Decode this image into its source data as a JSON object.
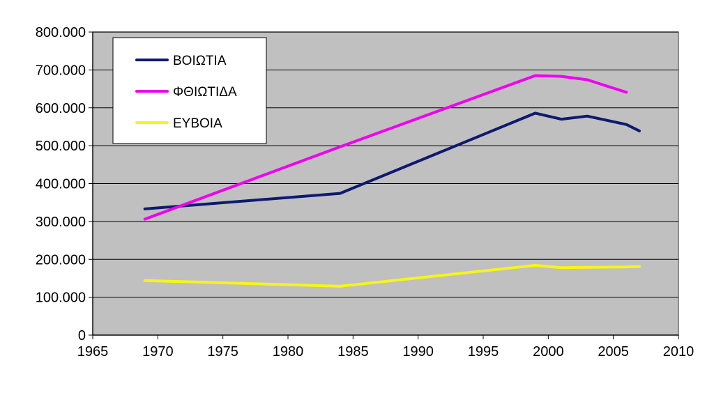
{
  "chart_data": {
    "type": "line",
    "title": "",
    "xlabel": "",
    "ylabel": "",
    "xlim": [
      1965,
      2010
    ],
    "ylim": [
      0,
      800000
    ],
    "x_ticks": [
      1965,
      1970,
      1975,
      1980,
      1985,
      1990,
      1995,
      2000,
      2005,
      2010
    ],
    "x_tick_labels": [
      "1965",
      "1970",
      "1975",
      "1980",
      "1985",
      "1990",
      "1995",
      "2000",
      "2005",
      "2010"
    ],
    "y_ticks": [
      0,
      100000,
      200000,
      300000,
      400000,
      500000,
      600000,
      700000,
      800000
    ],
    "y_tick_labels": [
      "0",
      "100.000",
      "200.000",
      "300.000",
      "400.000",
      "500.000",
      "600.000",
      "700.000",
      "800.000"
    ],
    "grid": "horizontal",
    "legend_position": "top-left",
    "plot_background": "#c0c0c0",
    "series": [
      {
        "name": "ΒΟΙΩΤΙΑ",
        "color": "#0d1a6e",
        "x": [
          1969,
          1984,
          1999,
          2001,
          2003,
          2006,
          2007
        ],
        "y": [
          333000,
          374000,
          586000,
          570000,
          578000,
          556000,
          539000
        ]
      },
      {
        "name": "ΦΘΙΩΤΙΔΑ",
        "color": "#ee00ee",
        "x": [
          1969,
          1984,
          1999,
          2001,
          2003,
          2006
        ],
        "y": [
          306000,
          497000,
          685000,
          683000,
          674000,
          641000
        ]
      },
      {
        "name": "ΕΥΒΟΙΑ",
        "color": "#f5f51a",
        "x": [
          1969,
          1984,
          1999,
          2001,
          2003,
          2006,
          2007
        ],
        "y": [
          144000,
          129000,
          184000,
          178000,
          179000,
          180000,
          181000
        ]
      }
    ]
  }
}
